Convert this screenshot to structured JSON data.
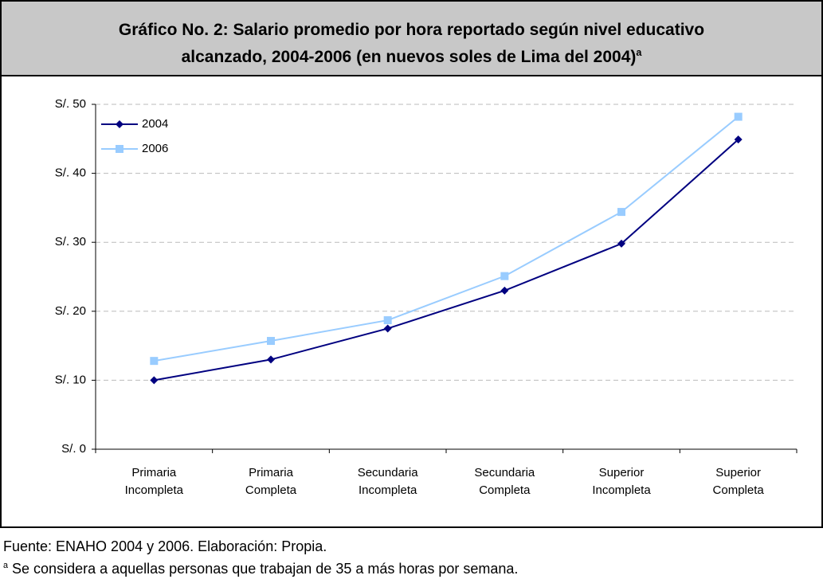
{
  "chart_data": {
    "type": "line",
    "title": [
      "Gráfico No. 2:  Salario promedio por hora reportado según nivel educativo",
      "alcanzado, 2004-2006 (en nuevos soles de Lima del 2004)"
    ],
    "title_note_marker": "a",
    "categories": [
      "Primaria\nIncompleta",
      "Primaria\nCompleta",
      "Secundaria\nIncompleta",
      "Secundaria\nCompleta",
      "Superior\nIncompleta",
      "Superior\nCompleta"
    ],
    "series": [
      {
        "name": "2004",
        "color": "#000080",
        "marker": "diamond",
        "values": [
          10.0,
          13.0,
          17.5,
          23.0,
          29.8,
          44.9
        ]
      },
      {
        "name": "2006",
        "color": "#99ccff",
        "marker": "square",
        "values": [
          12.8,
          15.7,
          18.7,
          25.1,
          34.4,
          48.2
        ]
      }
    ],
    "ylim": [
      0,
      50
    ],
    "yticks": [
      {
        "value": 0,
        "label": "S/. 0"
      },
      {
        "value": 10,
        "label": "S/. 10"
      },
      {
        "value": 20,
        "label": "S/. 20"
      },
      {
        "value": 30,
        "label": "S/. 30"
      },
      {
        "value": 40,
        "label": "S/. 40"
      },
      {
        "value": 50,
        "label": "S/. 50"
      }
    ],
    "grid": true,
    "legend": "upper-left",
    "source": "Fuente: ENAHO 2004 y 2006. Elaboración: Propia.",
    "note": {
      "marker": "a",
      "text": "Se considera a aquellas personas que trabajan de 35 a más horas por semana."
    }
  }
}
